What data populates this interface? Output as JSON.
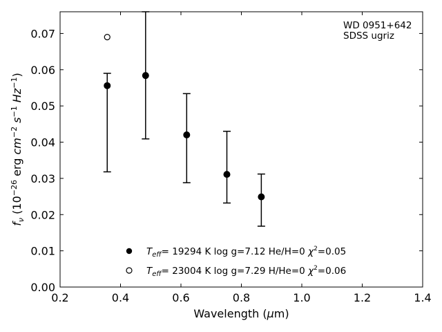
{
  "chart_data": {
    "type": "scatter",
    "title": "",
    "xlabel": "Wavelength (μm)",
    "ylabel": "f_ν (10^-26 erg cm^-2 s^-1 Hz^-1)",
    "xlim": [
      0.2,
      1.4
    ],
    "ylim": [
      0.0,
      0.076
    ],
    "xticks": [
      "0.2",
      "0.4",
      "0.6",
      "0.8",
      "1.0",
      "1.2",
      "1.4"
    ],
    "yticks": [
      "0.00",
      "0.01",
      "0.02",
      "0.03",
      "0.04",
      "0.05",
      "0.06",
      "0.07"
    ],
    "annotation": [
      "WD 0951+642",
      "SDSS ugriz"
    ],
    "series": [
      {
        "name": "T_eff= 19294 K  log g=7.12  He/H=0  χ²=0.05",
        "marker": "filled-circle",
        "color": "#000000",
        "x": [
          0.356,
          0.483,
          0.619,
          0.752,
          0.866
        ],
        "y": [
          0.0556,
          0.0584,
          0.042,
          0.0311,
          0.0249
        ],
        "yerr_low": [
          0.0318,
          0.0409,
          0.0288,
          0.0232,
          0.0168
        ],
        "yerr_high": [
          0.059,
          0.076,
          0.0534,
          0.043,
          0.0312
        ]
      },
      {
        "name": "T_eff= 23004 K  log g=7.29  H/He=0  χ²=0.06",
        "marker": "open-circle",
        "color": "#000000",
        "x": [
          0.356
        ],
        "y": [
          0.069
        ]
      }
    ],
    "legend_position": "bottom-center",
    "grid": false
  }
}
